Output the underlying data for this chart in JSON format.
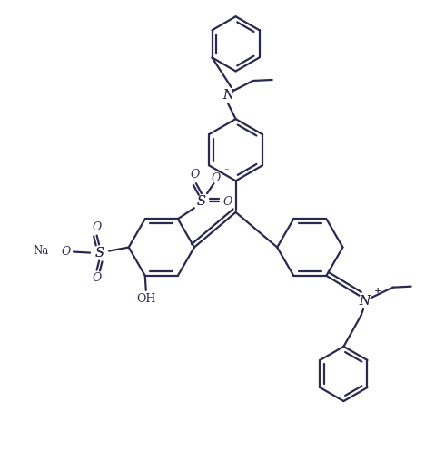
{
  "bg_color": "#ffffff",
  "line_color": "#2a2a50",
  "line_width": 1.6,
  "figsize": [
    4.79,
    5.18
  ],
  "dpi": 100,
  "xlim": [
    0,
    9.5
  ],
  "ylim": [
    0,
    10.3
  ]
}
